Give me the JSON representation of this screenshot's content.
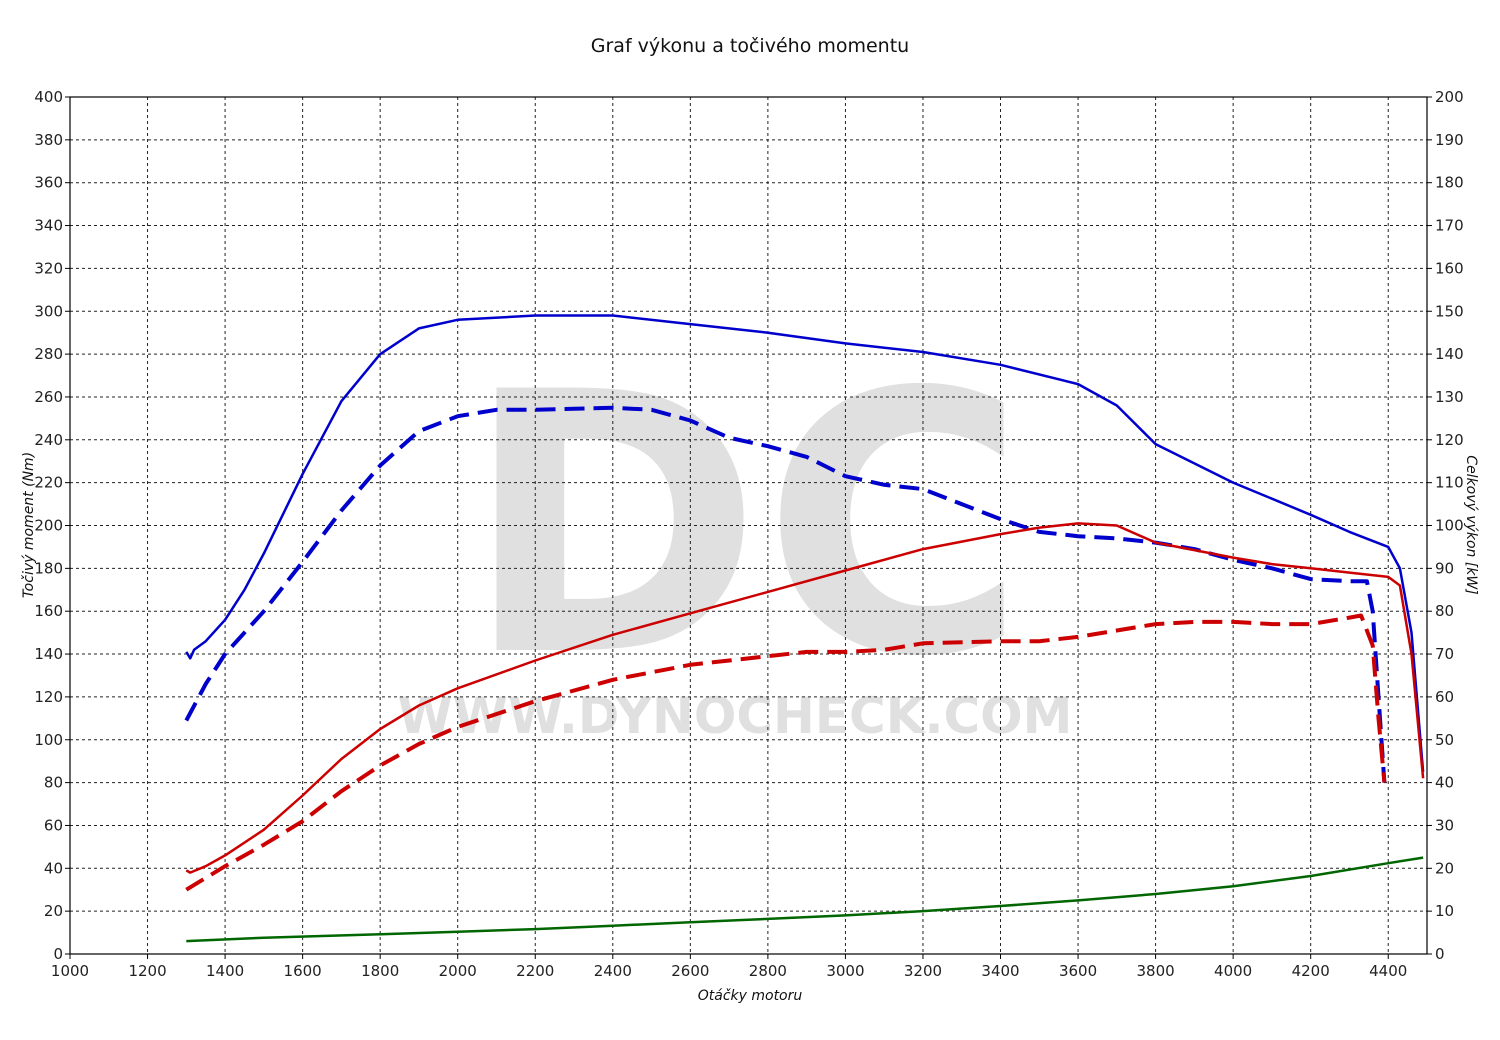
{
  "chart_data": {
    "type": "line",
    "title": "Graf výkonu a točivého momentu",
    "xlabel": "Otáčky motoru",
    "ylabel_left": "Točivý moment (Nm)",
    "ylabel_right": "Celkový výkon [kW]",
    "xlim": [
      1000,
      4500
    ],
    "ylim_left": [
      0,
      400
    ],
    "ylim_right": [
      0,
      200
    ],
    "x_ticks": [
      1000,
      1200,
      1400,
      1600,
      1800,
      2000,
      2200,
      2400,
      2600,
      2800,
      3000,
      3200,
      3400,
      3600,
      3800,
      4000,
      4200,
      4400
    ],
    "y_left_ticks": [
      0,
      20,
      40,
      60,
      80,
      100,
      120,
      140,
      160,
      180,
      200,
      220,
      240,
      260,
      280,
      300,
      320,
      340,
      360,
      380,
      400
    ],
    "y_right_ticks": [
      0,
      10,
      20,
      30,
      40,
      50,
      60,
      70,
      80,
      90,
      100,
      110,
      120,
      130,
      140,
      150,
      160,
      170,
      180,
      190,
      200
    ],
    "grid": true,
    "legend": "none",
    "watermark": {
      "logo": "DC",
      "text": "WWW.DYNOCHECK.COM"
    },
    "series": [
      {
        "axis": "left",
        "color": "#0000cc",
        "style": "solid",
        "points": [
          [
            1300,
            141
          ],
          [
            1310,
            138
          ],
          [
            1320,
            142
          ],
          [
            1350,
            146
          ],
          [
            1400,
            156
          ],
          [
            1450,
            170
          ],
          [
            1500,
            187
          ],
          [
            1600,
            224
          ],
          [
            1700,
            258
          ],
          [
            1800,
            280
          ],
          [
            1900,
            292
          ],
          [
            2000,
            296
          ],
          [
            2200,
            298
          ],
          [
            2400,
            298
          ],
          [
            2600,
            294
          ],
          [
            2800,
            290
          ],
          [
            3000,
            285
          ],
          [
            3200,
            281
          ],
          [
            3400,
            275
          ],
          [
            3600,
            266
          ],
          [
            3700,
            256
          ],
          [
            3800,
            238
          ],
          [
            4000,
            220
          ],
          [
            4200,
            205
          ],
          [
            4300,
            197
          ],
          [
            4400,
            190
          ],
          [
            4430,
            180
          ],
          [
            4460,
            150
          ],
          [
            4490,
            85
          ]
        ]
      },
      {
        "axis": "left",
        "color": "#0000cc",
        "style": "dashed",
        "points": [
          [
            1300,
            109
          ],
          [
            1350,
            126
          ],
          [
            1400,
            140
          ],
          [
            1500,
            160
          ],
          [
            1600,
            183
          ],
          [
            1700,
            207
          ],
          [
            1800,
            228
          ],
          [
            1900,
            244
          ],
          [
            2000,
            251
          ],
          [
            2100,
            254
          ],
          [
            2200,
            254
          ],
          [
            2400,
            255
          ],
          [
            2500,
            254
          ],
          [
            2600,
            249
          ],
          [
            2700,
            241
          ],
          [
            2800,
            237
          ],
          [
            2900,
            232
          ],
          [
            3000,
            223
          ],
          [
            3100,
            219
          ],
          [
            3200,
            217
          ],
          [
            3300,
            210
          ],
          [
            3400,
            203
          ],
          [
            3500,
            197
          ],
          [
            3600,
            195
          ],
          [
            3700,
            194
          ],
          [
            3800,
            192
          ],
          [
            3900,
            189
          ],
          [
            4000,
            184
          ],
          [
            4100,
            180
          ],
          [
            4200,
            175
          ],
          [
            4300,
            174
          ],
          [
            4345,
            174
          ],
          [
            4360,
            160
          ],
          [
            4375,
            120
          ],
          [
            4390,
            80
          ]
        ]
      },
      {
        "axis": "right",
        "color": "#cc0000",
        "style": "solid",
        "points": [
          [
            1300,
            19.5
          ],
          [
            1310,
            19
          ],
          [
            1350,
            20.5
          ],
          [
            1400,
            23
          ],
          [
            1500,
            29
          ],
          [
            1600,
            37
          ],
          [
            1700,
            45.5
          ],
          [
            1800,
            52.5
          ],
          [
            1900,
            58
          ],
          [
            2000,
            62
          ],
          [
            2200,
            68.5
          ],
          [
            2400,
            74.5
          ],
          [
            2600,
            79.5
          ],
          [
            2800,
            84.5
          ],
          [
            3000,
            89.5
          ],
          [
            3200,
            94.5
          ],
          [
            3400,
            98
          ],
          [
            3500,
            99.5
          ],
          [
            3600,
            100.5
          ],
          [
            3700,
            100
          ],
          [
            3800,
            96
          ],
          [
            4000,
            92.5
          ],
          [
            4100,
            91
          ],
          [
            4200,
            90
          ],
          [
            4300,
            89
          ],
          [
            4400,
            88
          ],
          [
            4430,
            86
          ],
          [
            4460,
            70
          ],
          [
            4490,
            41
          ]
        ]
      },
      {
        "axis": "right",
        "color": "#cc0000",
        "style": "dashed",
        "points": [
          [
            1300,
            15
          ],
          [
            1400,
            20.5
          ],
          [
            1500,
            25.5
          ],
          [
            1600,
            31
          ],
          [
            1700,
            38
          ],
          [
            1800,
            44
          ],
          [
            1900,
            49
          ],
          [
            2000,
            53
          ],
          [
            2200,
            59
          ],
          [
            2400,
            64
          ],
          [
            2600,
            67.5
          ],
          [
            2800,
            69.5
          ],
          [
            2900,
            70.5
          ],
          [
            3000,
            70.5
          ],
          [
            3100,
            71
          ],
          [
            3200,
            72.5
          ],
          [
            3400,
            73
          ],
          [
            3500,
            73
          ],
          [
            3600,
            74
          ],
          [
            3700,
            75.5
          ],
          [
            3800,
            77
          ],
          [
            3900,
            77.5
          ],
          [
            4000,
            77.5
          ],
          [
            4100,
            77
          ],
          [
            4200,
            77
          ],
          [
            4300,
            78.5
          ],
          [
            4330,
            79
          ],
          [
            4360,
            72
          ],
          [
            4375,
            55
          ],
          [
            4390,
            40
          ]
        ]
      },
      {
        "axis": "right",
        "color": "#006600",
        "style": "solid",
        "points": [
          [
            1300,
            3
          ],
          [
            1500,
            3.8
          ],
          [
            1800,
            4.6
          ],
          [
            2000,
            5.2
          ],
          [
            2200,
            5.8
          ],
          [
            2400,
            6.6
          ],
          [
            2600,
            7.4
          ],
          [
            2800,
            8.2
          ],
          [
            3000,
            9
          ],
          [
            3200,
            10
          ],
          [
            3400,
            11.2
          ],
          [
            3600,
            12.5
          ],
          [
            3800,
            14
          ],
          [
            4000,
            15.8
          ],
          [
            4200,
            18.2
          ],
          [
            4400,
            21.2
          ],
          [
            4490,
            22.5
          ]
        ]
      }
    ]
  }
}
